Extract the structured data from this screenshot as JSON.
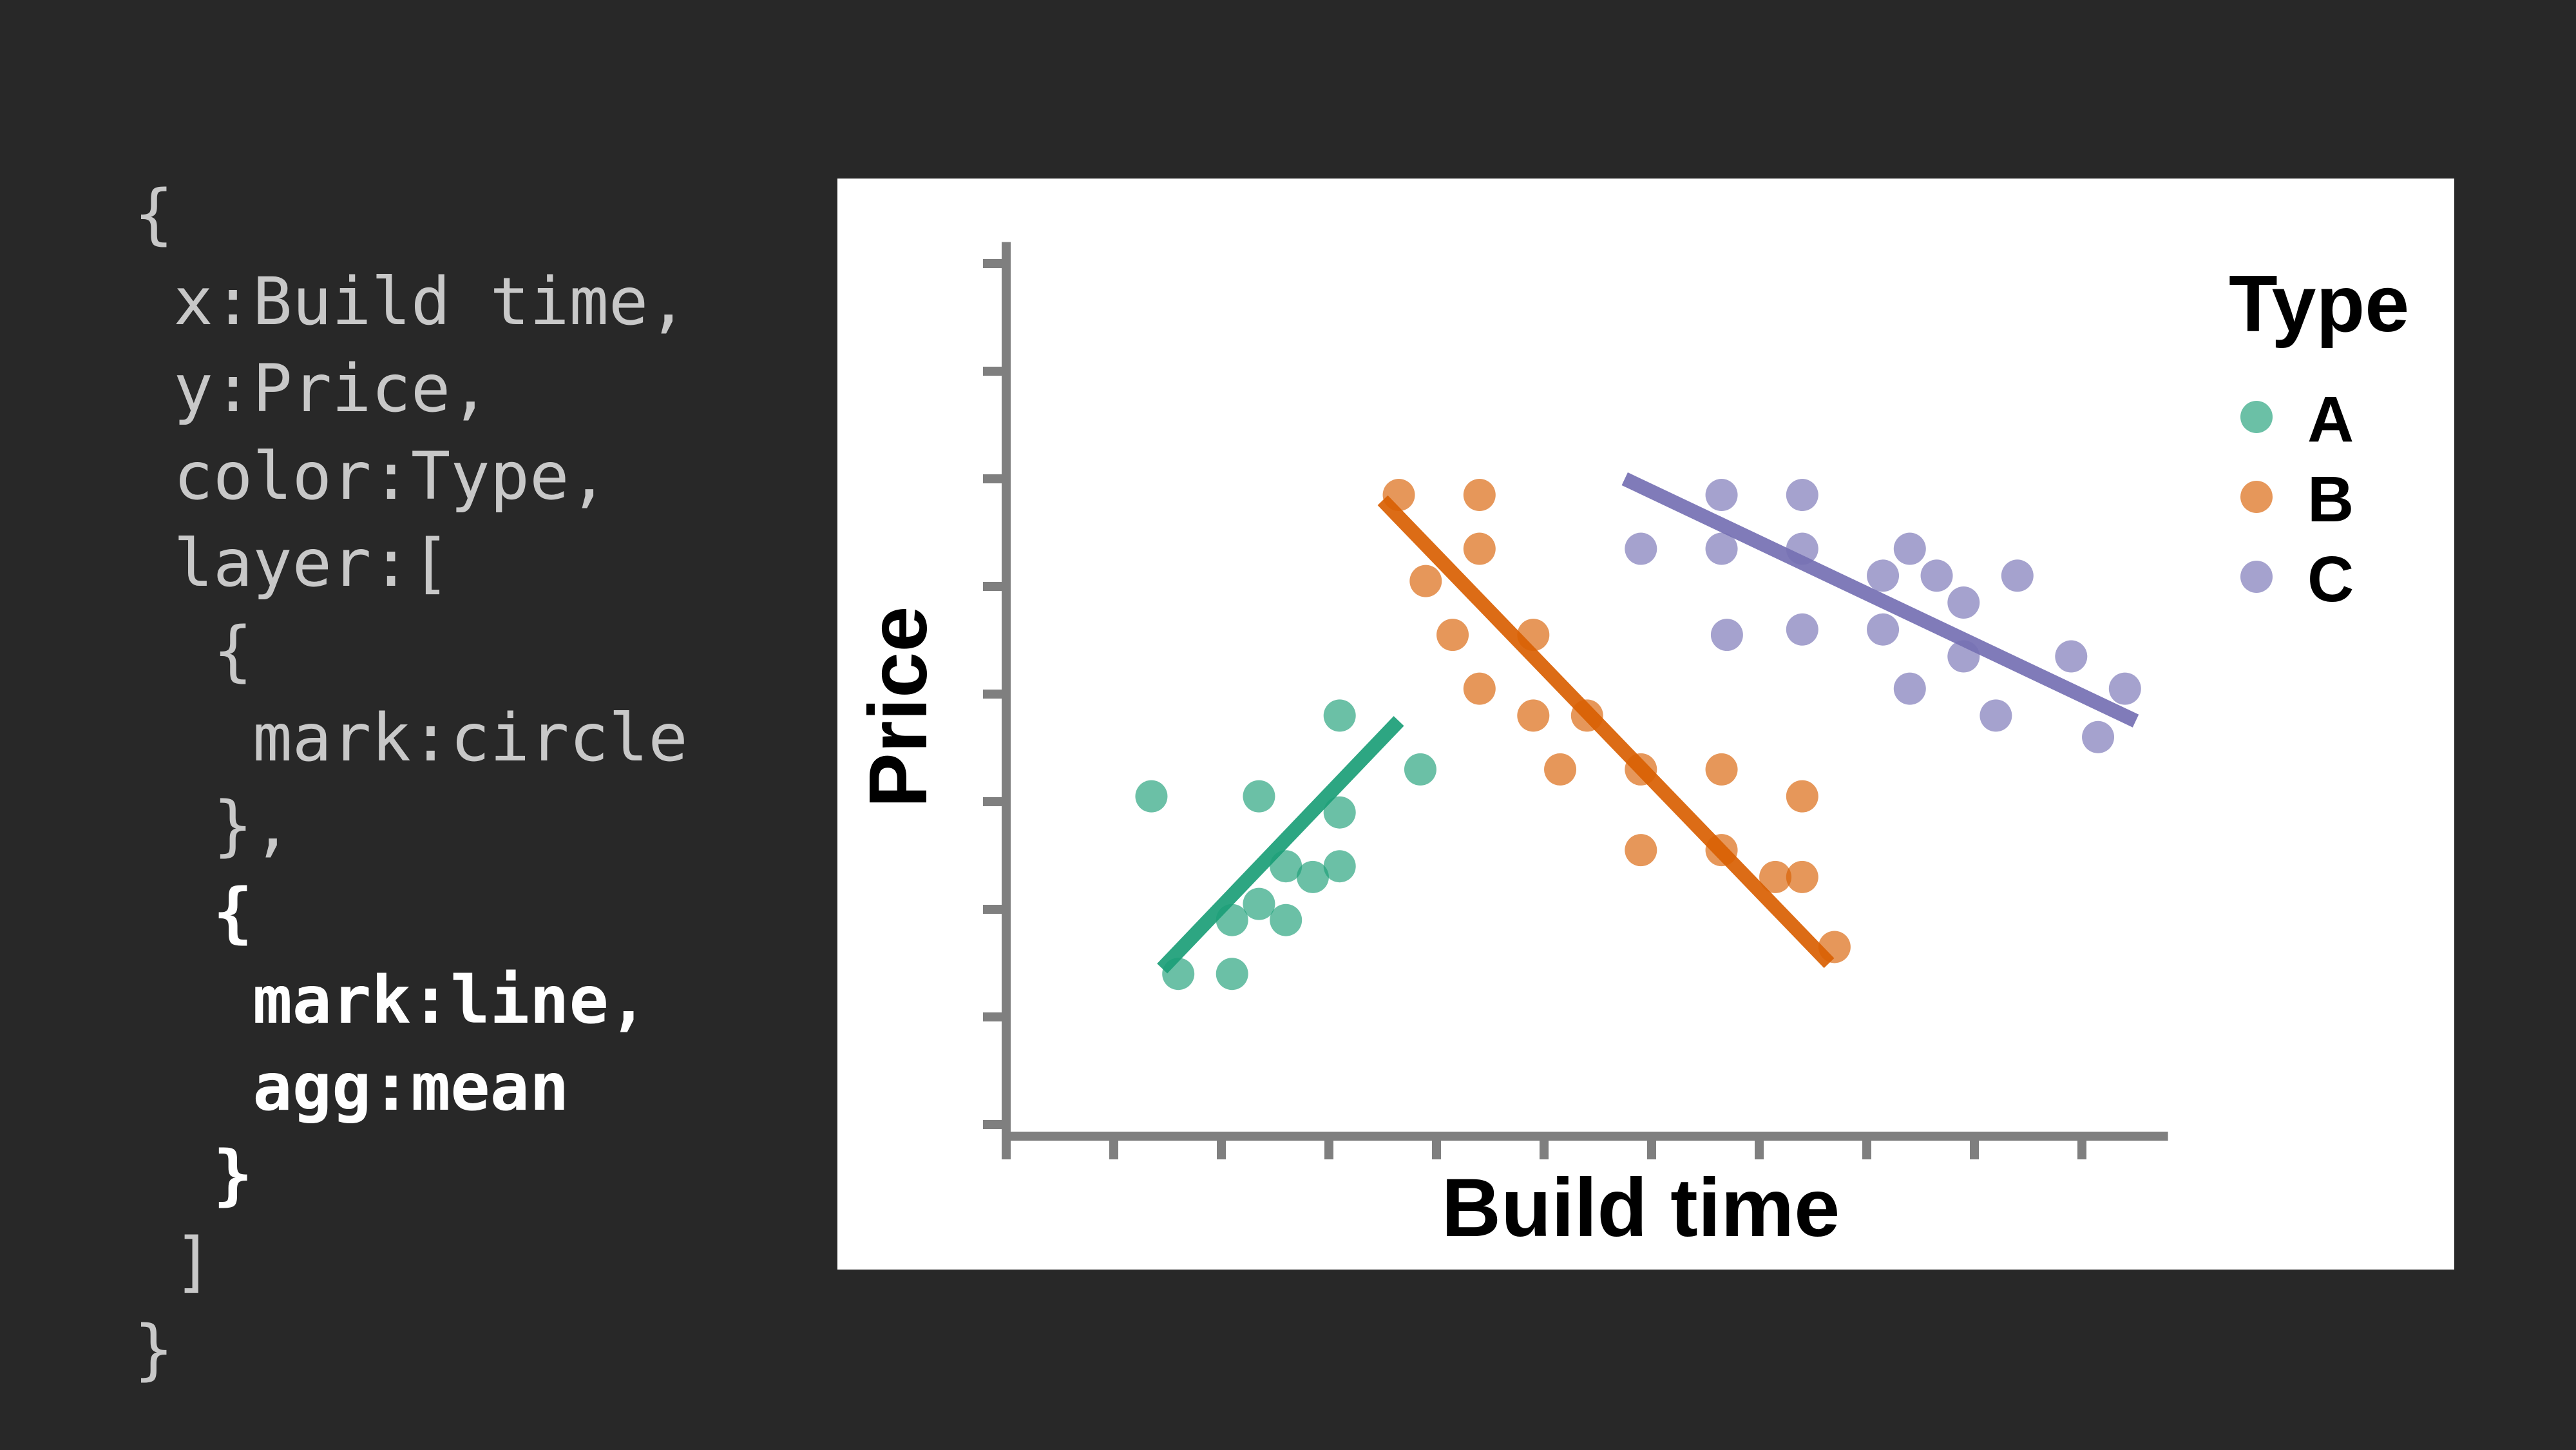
{
  "code": {
    "lines": [
      {
        "text": "{",
        "bold": false
      },
      {
        "text": " x:Build time,",
        "bold": false
      },
      {
        "text": " y:Price,",
        "bold": false
      },
      {
        "text": " color:Type,",
        "bold": false
      },
      {
        "text": " layer:[",
        "bold": false
      },
      {
        "text": "  {",
        "bold": false
      },
      {
        "text": "   mark:circle",
        "bold": false
      },
      {
        "text": "  },",
        "bold": false
      },
      {
        "text": "  {",
        "bold": true
      },
      {
        "text": "   mark:line,",
        "bold": true
      },
      {
        "text": "   agg:mean",
        "bold": true
      },
      {
        "text": "  }",
        "bold": true
      },
      {
        "text": " ]",
        "bold": false
      },
      {
        "text": "}",
        "bold": false
      }
    ]
  },
  "chart_data": {
    "type": "scatter",
    "xlabel": "Build time",
    "ylabel": "Price",
    "xlim": [
      0,
      10.8
    ],
    "ylim": [
      0,
      8.2
    ],
    "x_ticks": [
      0,
      1,
      2,
      3,
      4,
      5,
      6,
      7,
      8,
      9,
      10
    ],
    "y_ticks": [
      0,
      1,
      2,
      3,
      4,
      5,
      6,
      7,
      8
    ],
    "tick_labels_shown": false,
    "grid": false,
    "legend": {
      "title": "Type",
      "position": "right"
    },
    "series": [
      {
        "name": "A",
        "color": "#1b9e77",
        "points": [
          [
            1.35,
            3.05
          ],
          [
            1.6,
            1.4
          ],
          [
            2.1,
            1.9
          ],
          [
            2.1,
            1.4
          ],
          [
            2.35,
            3.05
          ],
          [
            2.35,
            2.05
          ],
          [
            2.6,
            1.9
          ],
          [
            2.6,
            2.4
          ],
          [
            2.85,
            2.3
          ],
          [
            3.1,
            2.9
          ],
          [
            3.1,
            3.8
          ],
          [
            3.1,
            2.4
          ],
          [
            3.85,
            3.3
          ]
        ],
        "trend": [
          [
            1.45,
            1.45
          ],
          [
            3.65,
            3.75
          ]
        ]
      },
      {
        "name": "B",
        "color": "#d95f02",
        "points": [
          [
            3.65,
            5.85
          ],
          [
            3.9,
            5.05
          ],
          [
            4.15,
            4.55
          ],
          [
            4.4,
            5.85
          ],
          [
            4.4,
            5.35
          ],
          [
            4.4,
            4.05
          ],
          [
            4.9,
            3.8
          ],
          [
            4.9,
            4.55
          ],
          [
            5.15,
            3.3
          ],
          [
            5.4,
            3.8
          ],
          [
            5.9,
            3.3
          ],
          [
            5.9,
            2.55
          ],
          [
            6.65,
            3.3
          ],
          [
            6.65,
            2.55
          ],
          [
            7.15,
            2.3
          ],
          [
            7.4,
            3.05
          ],
          [
            7.4,
            2.3
          ],
          [
            7.7,
            1.65
          ]
        ],
        "trend": [
          [
            3.5,
            5.8
          ],
          [
            7.65,
            1.5
          ]
        ]
      },
      {
        "name": "C",
        "color": "#7570b3",
        "points": [
          [
            5.9,
            5.35
          ],
          [
            6.65,
            5.85
          ],
          [
            6.65,
            5.35
          ],
          [
            6.7,
            4.55
          ],
          [
            7.4,
            5.85
          ],
          [
            7.4,
            5.35
          ],
          [
            7.4,
            4.6
          ],
          [
            8.15,
            5.1
          ],
          [
            8.15,
            4.6
          ],
          [
            8.4,
            5.35
          ],
          [
            8.4,
            4.05
          ],
          [
            8.65,
            5.1
          ],
          [
            8.9,
            4.85
          ],
          [
            8.9,
            4.35
          ],
          [
            9.2,
            3.8
          ],
          [
            9.4,
            5.1
          ],
          [
            9.9,
            4.35
          ],
          [
            10.15,
            3.6
          ],
          [
            10.4,
            4.05
          ]
        ],
        "trend": [
          [
            5.75,
            6.0
          ],
          [
            10.5,
            3.75
          ]
        ]
      }
    ]
  }
}
